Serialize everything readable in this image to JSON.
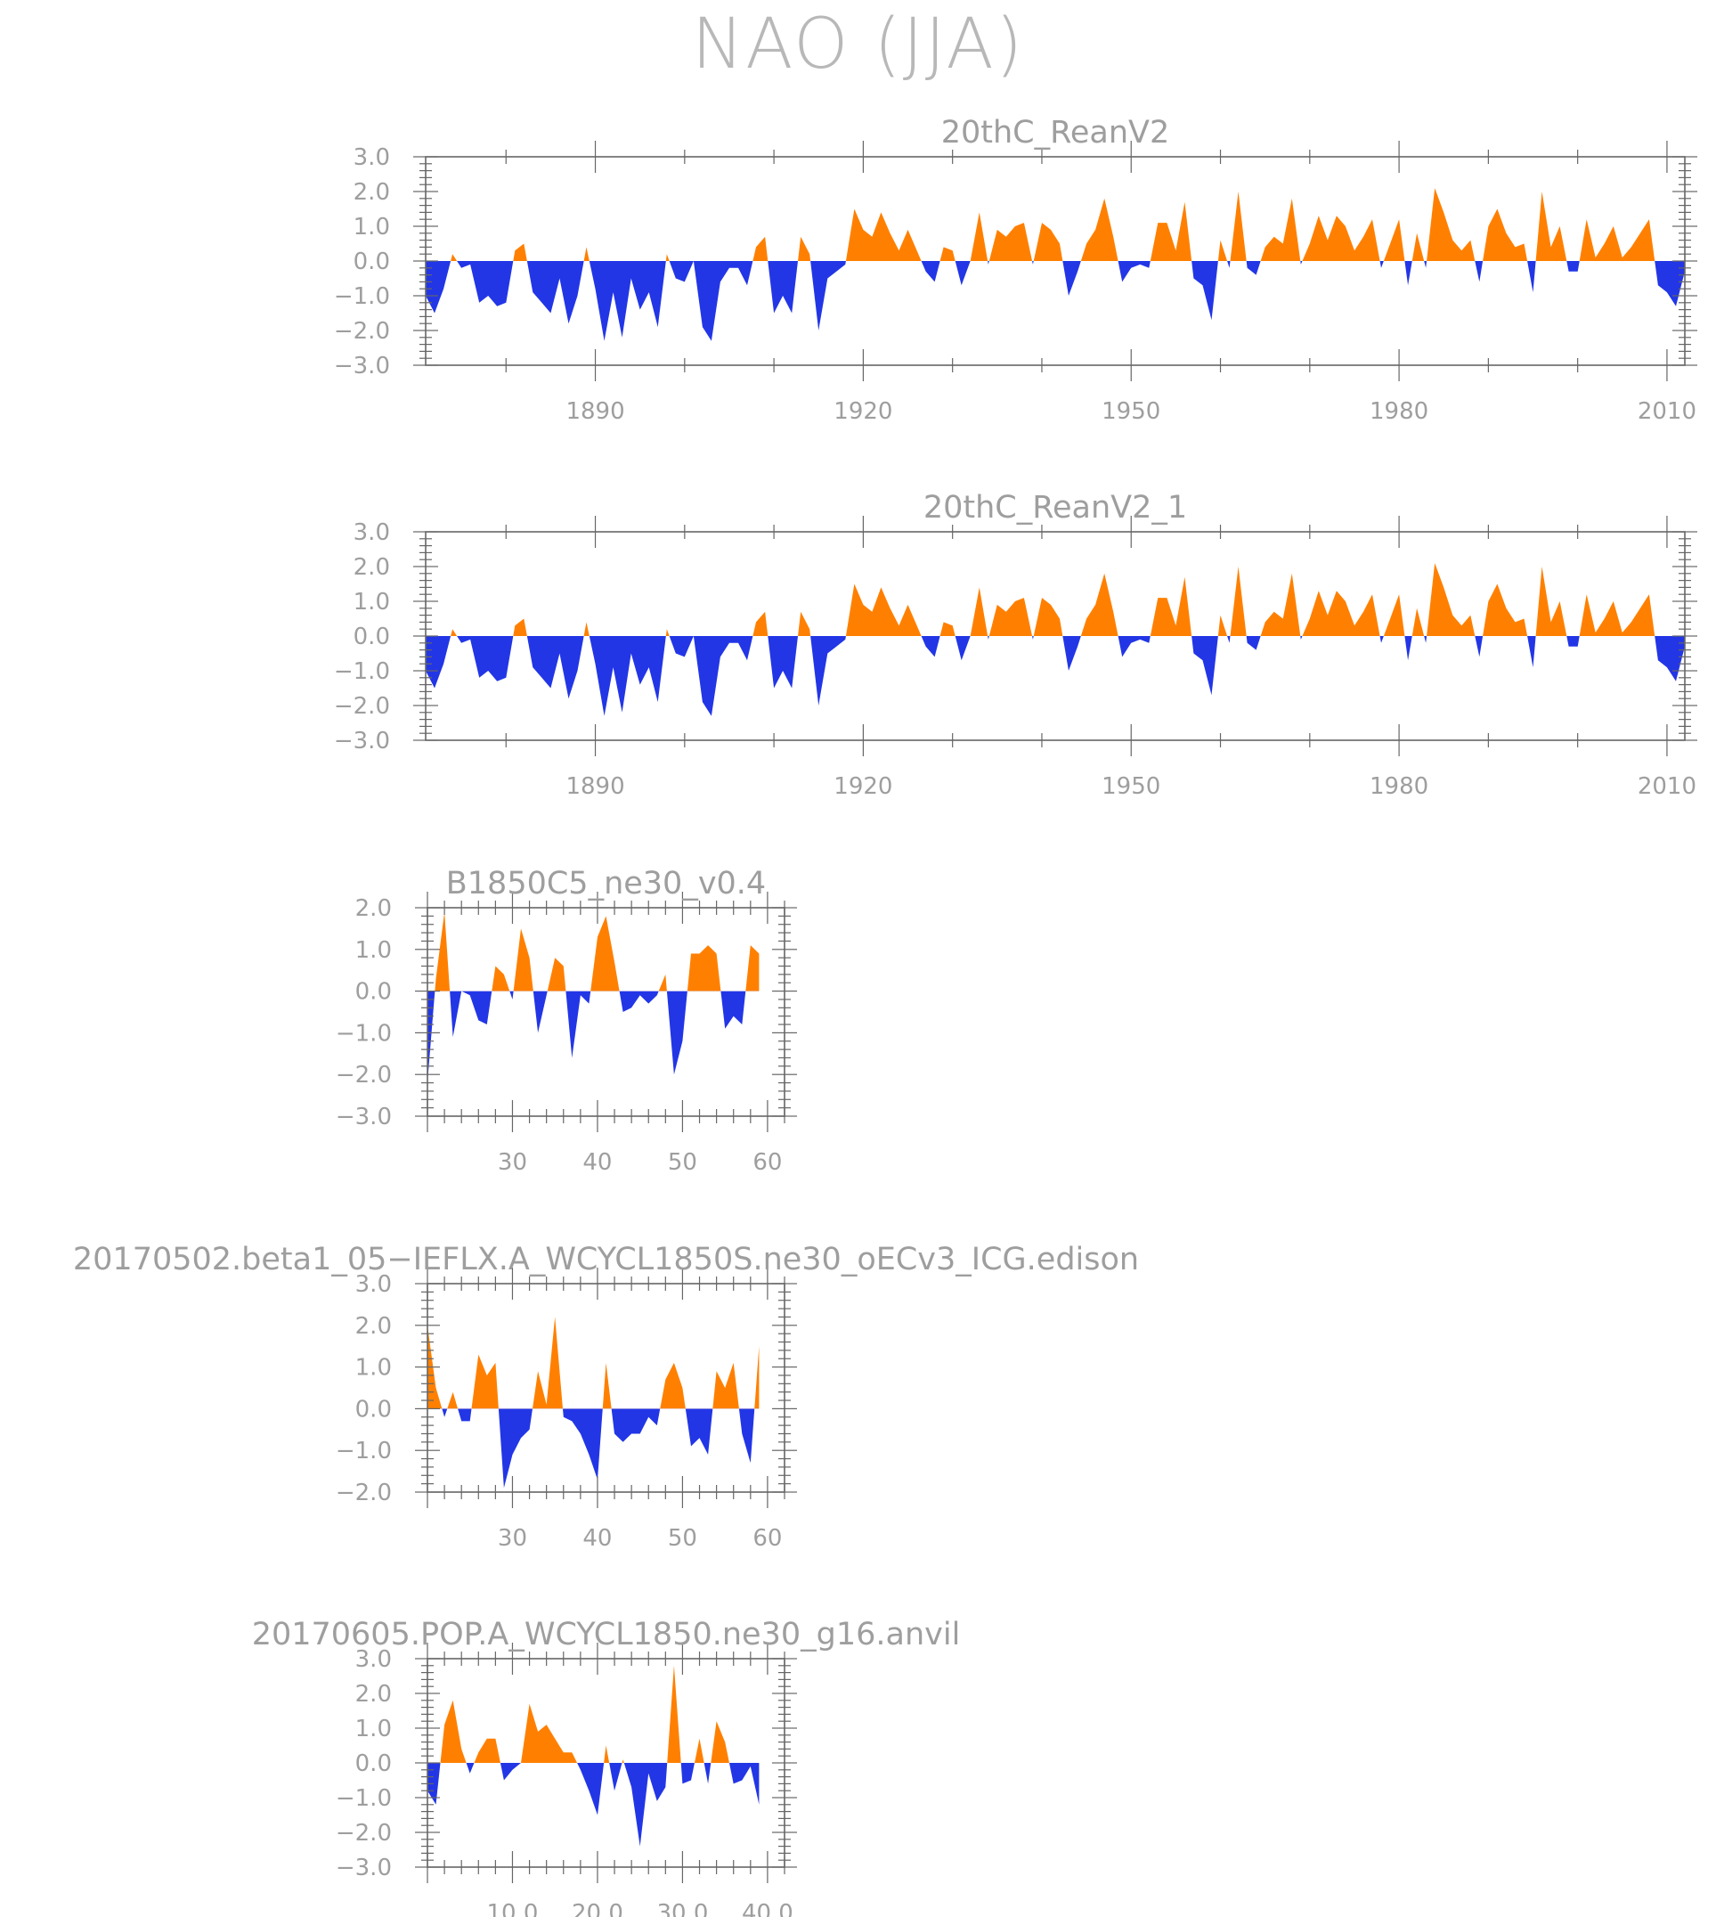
{
  "title": "NAO (JJA)",
  "colors": {
    "positive": "#ff8000",
    "negative": "#2236e6",
    "frame": "#666666",
    "text": "#9e9e9e"
  },
  "chart_data": [
    {
      "id": "p1",
      "type": "area",
      "title": "20thC_ReanV2",
      "xlim": [
        1871,
        2012
      ],
      "ylim": [
        -3,
        3
      ],
      "yticks": [
        3.0,
        2.0,
        1.0,
        0.0,
        -1.0,
        -2.0,
        -3.0
      ],
      "ytick_labels": [
        "3.0",
        "2.0",
        "1.0",
        "0.0",
        "−1.0",
        "−2.0",
        "−3.0"
      ],
      "xticks": [
        1890,
        1920,
        1950,
        1980,
        2010
      ],
      "xtick_labels": [
        "1890",
        "1920",
        "1950",
        "1980",
        "2010"
      ],
      "x_start": 1871,
      "values": [
        -1.0,
        -1.5,
        -0.8,
        0.2,
        -0.2,
        -0.1,
        -1.2,
        -1.0,
        -1.3,
        -1.2,
        0.3,
        0.5,
        -0.9,
        -1.2,
        -1.5,
        -0.5,
        -1.8,
        -1.0,
        0.4,
        -0.8,
        -2.3,
        -0.9,
        -2.2,
        -0.5,
        -1.4,
        -0.9,
        -1.9,
        0.2,
        -0.5,
        -0.6,
        0.0,
        -1.9,
        -2.3,
        -0.6,
        -0.2,
        -0.2,
        -0.7,
        0.4,
        0.7,
        -1.5,
        -1.0,
        -1.5,
        0.7,
        0.2,
        -2.0,
        -0.5,
        -0.3,
        -0.1,
        1.5,
        0.9,
        0.7,
        1.4,
        0.8,
        0.3,
        0.9,
        0.3,
        -0.3,
        -0.6,
        0.4,
        0.3,
        -0.7,
        0.0,
        1.4,
        -0.1,
        0.9,
        0.7,
        1.0,
        1.1,
        -0.1,
        1.1,
        0.9,
        0.5,
        -1.0,
        -0.3,
        0.5,
        0.9,
        1.8,
        0.7,
        -0.6,
        -0.2,
        -0.1,
        -0.2,
        1.1,
        1.1,
        0.3,
        1.7,
        -0.5,
        -0.7,
        -1.7,
        0.6,
        -0.2,
        2.0,
        -0.2,
        -0.4,
        0.4,
        0.7,
        0.5,
        1.8,
        -0.1,
        0.5,
        1.3,
        0.6,
        1.3,
        1.0,
        0.3,
        0.7,
        1.2,
        -0.2,
        0.5,
        1.2,
        -0.7,
        0.8,
        -0.2,
        2.1,
        1.4,
        0.6,
        0.3,
        0.6,
        -0.6,
        1.0,
        1.5,
        0.8,
        0.4,
        0.5,
        -0.9,
        2.0,
        0.4,
        1.0,
        -0.3,
        -0.3,
        1.2,
        0.1,
        0.5,
        1.0,
        0.1,
        0.4,
        0.8,
        1.2,
        -0.7,
        -0.9,
        -1.3,
        -0.3,
        -1.5,
        -1.1
      ]
    },
    {
      "id": "p2",
      "type": "area",
      "title": "20thC_ReanV2_1",
      "xlim": [
        1871,
        2012
      ],
      "ylim": [
        -3,
        3
      ],
      "yticks": [
        3.0,
        2.0,
        1.0,
        0.0,
        -1.0,
        -2.0,
        -3.0
      ],
      "ytick_labels": [
        "3.0",
        "2.0",
        "1.0",
        "0.0",
        "−1.0",
        "−2.0",
        "−3.0"
      ],
      "xticks": [
        1890,
        1920,
        1950,
        1980,
        2010
      ],
      "xtick_labels": [
        "1890",
        "1920",
        "1950",
        "1980",
        "2010"
      ],
      "x_start": 1871,
      "values": [
        -1.0,
        -1.5,
        -0.8,
        0.2,
        -0.2,
        -0.1,
        -1.2,
        -1.0,
        -1.3,
        -1.2,
        0.3,
        0.5,
        -0.9,
        -1.2,
        -1.5,
        -0.5,
        -1.8,
        -1.0,
        0.4,
        -0.8,
        -2.3,
        -0.9,
        -2.2,
        -0.5,
        -1.4,
        -0.9,
        -1.9,
        0.2,
        -0.5,
        -0.6,
        0.0,
        -1.9,
        -2.3,
        -0.6,
        -0.2,
        -0.2,
        -0.7,
        0.4,
        0.7,
        -1.5,
        -1.0,
        -1.5,
        0.7,
        0.2,
        -2.0,
        -0.5,
        -0.3,
        -0.1,
        1.5,
        0.9,
        0.7,
        1.4,
        0.8,
        0.3,
        0.9,
        0.3,
        -0.3,
        -0.6,
        0.4,
        0.3,
        -0.7,
        0.0,
        1.4,
        -0.1,
        0.9,
        0.7,
        1.0,
        1.1,
        -0.1,
        1.1,
        0.9,
        0.5,
        -1.0,
        -0.3,
        0.5,
        0.9,
        1.8,
        0.7,
        -0.6,
        -0.2,
        -0.1,
        -0.2,
        1.1,
        1.1,
        0.3,
        1.7,
        -0.5,
        -0.7,
        -1.7,
        0.6,
        -0.2,
        2.0,
        -0.2,
        -0.4,
        0.4,
        0.7,
        0.5,
        1.8,
        -0.1,
        0.5,
        1.3,
        0.6,
        1.3,
        1.0,
        0.3,
        0.7,
        1.2,
        -0.2,
        0.5,
        1.2,
        -0.7,
        0.8,
        -0.2,
        2.1,
        1.4,
        0.6,
        0.3,
        0.6,
        -0.6,
        1.0,
        1.5,
        0.8,
        0.4,
        0.5,
        -0.9,
        2.0,
        0.4,
        1.0,
        -0.3,
        -0.3,
        1.2,
        0.1,
        0.5,
        1.0,
        0.1,
        0.4,
        0.8,
        1.2,
        -0.7,
        -0.9,
        -1.3,
        -0.3,
        -1.5,
        -1.1
      ]
    },
    {
      "id": "p3",
      "type": "area",
      "title": "B1850C5_ne30_v0.4",
      "xlim": [
        20,
        62
      ],
      "ylim": [
        -3,
        2
      ],
      "yticks": [
        2.0,
        1.0,
        0.0,
        -1.0,
        -2.0,
        -3.0
      ],
      "ytick_labels": [
        "2.0",
        "1.0",
        "0.0",
        "−1.0",
        "−2.0",
        "−3.0"
      ],
      "xticks": [
        30,
        40,
        50,
        60
      ],
      "xtick_labels": [
        "30",
        "40",
        "50",
        "60"
      ],
      "x_start": 20,
      "values": [
        -2.2,
        0.3,
        1.9,
        -1.1,
        0.0,
        -0.1,
        -0.7,
        -0.8,
        0.6,
        0.4,
        -0.2,
        1.5,
        0.8,
        -1.0,
        -0.1,
        0.8,
        0.6,
        -1.6,
        -0.1,
        -0.3,
        1.3,
        1.8,
        0.7,
        -0.5,
        -0.4,
        -0.1,
        -0.3,
        -0.1,
        0.4,
        -2.0,
        -1.2,
        0.9,
        0.9,
        1.1,
        0.9,
        -0.9,
        -0.6,
        -0.8,
        1.1,
        0.9
      ]
    },
    {
      "id": "p4",
      "type": "area",
      "title": "20170502.beta1_05−IEFLX.A_WCYCL1850S.ne30_oECv3_ICG.edison",
      "xlim": [
        20,
        62
      ],
      "ylim": [
        -2,
        3
      ],
      "yticks": [
        3.0,
        2.0,
        1.0,
        0.0,
        -1.0,
        -2.0
      ],
      "ytick_labels": [
        "3.0",
        "2.0",
        "1.0",
        "0.0",
        "−1.0",
        "−2.0"
      ],
      "xticks": [
        30,
        40,
        50,
        60
      ],
      "xtick_labels": [
        "30",
        "40",
        "50",
        "60"
      ],
      "x_start": 20,
      "values": [
        2.0,
        0.5,
        -0.2,
        0.4,
        -0.3,
        -0.3,
        1.3,
        0.8,
        1.1,
        -1.9,
        -1.1,
        -0.7,
        -0.5,
        0.9,
        0.1,
        2.2,
        -0.2,
        -0.3,
        -0.6,
        -1.1,
        -1.7,
        1.1,
        -0.6,
        -0.8,
        -0.6,
        -0.6,
        -0.2,
        -0.4,
        0.7,
        1.1,
        0.5,
        -0.9,
        -0.7,
        -1.1,
        0.9,
        0.5,
        1.1,
        -0.6,
        -1.3,
        1.5
      ]
    },
    {
      "id": "p5",
      "type": "area",
      "title": "20170605.POP.A_WCYCL1850.ne30_g16.anvil",
      "xlim": [
        0,
        42
      ],
      "ylim": [
        -3,
        3
      ],
      "yticks": [
        3.0,
        2.0,
        1.0,
        0.0,
        -1.0,
        -2.0,
        -3.0
      ],
      "ytick_labels": [
        "3.0",
        "2.0",
        "1.0",
        "0.0",
        "−1.0",
        "−2.0",
        "−3.0"
      ],
      "xticks": [
        10,
        20,
        30,
        40
      ],
      "xtick_labels": [
        "10.0",
        "20.0",
        "30.0",
        "40.0"
      ],
      "x_start": 0,
      "values": [
        -0.8,
        -1.2,
        1.1,
        1.8,
        0.4,
        -0.3,
        0.3,
        0.7,
        0.7,
        -0.5,
        -0.2,
        0.0,
        1.7,
        0.9,
        1.1,
        0.7,
        0.3,
        0.3,
        -0.2,
        -0.8,
        -1.5,
        0.5,
        -0.8,
        0.1,
        -0.7,
        -2.4,
        -0.3,
        -1.1,
        -0.7,
        2.8,
        -0.6,
        -0.5,
        0.7,
        -0.6,
        1.2,
        0.6,
        -0.6,
        -0.5,
        -0.1,
        -1.2
      ]
    }
  ]
}
